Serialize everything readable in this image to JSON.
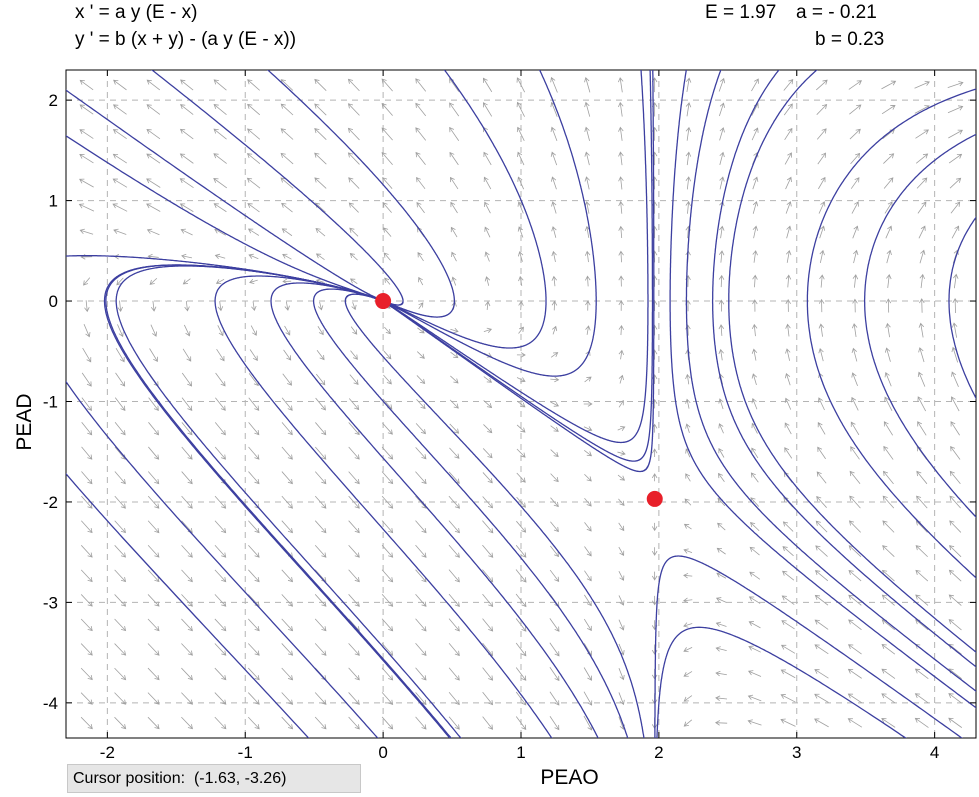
{
  "equations": {
    "x_prime": "x ' = a y (E - x)",
    "y_prime": "y ' = b (x + y) - (a y (E - x))"
  },
  "parameters": {
    "E": "E = 1.97",
    "a": "a = - 0.21",
    "b": "b = 0.23"
  },
  "cursor_position": "Cursor position:  (-1.63, -3.26)",
  "chart_data": {
    "type": "scatter",
    "title": "",
    "xlabel": "PEAO",
    "ylabel": "PEAD",
    "xlim": [
      -2.3,
      4.3
    ],
    "ylim": [
      -4.35,
      2.3
    ],
    "x_ticks": [
      -2,
      -1,
      0,
      1,
      2,
      3,
      4
    ],
    "y_ticks": [
      2,
      1,
      0,
      -1,
      -2,
      -3,
      -4
    ],
    "grid": true,
    "params": {
      "E": 1.97,
      "a": -0.21,
      "b": 0.23
    },
    "equilibria": [
      {
        "x": 0,
        "y": 0
      },
      {
        "x": 1.97,
        "y": -1.97
      }
    ],
    "colors": {
      "trajectory": "#3c3fa0",
      "arrow": "#a0a0a0",
      "grid": "#b4b4b4",
      "equilibrium": "#e8202a"
    }
  }
}
